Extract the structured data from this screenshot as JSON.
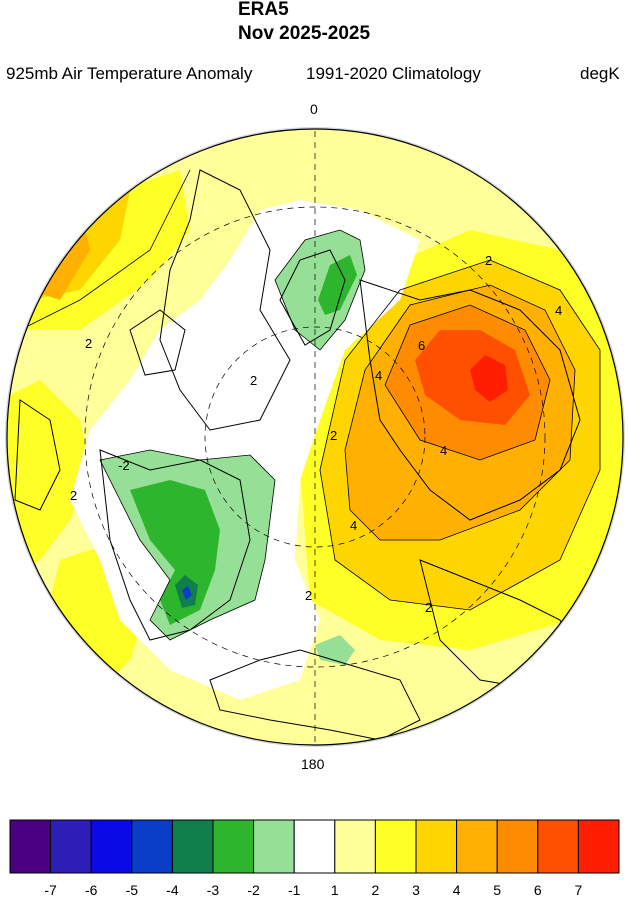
{
  "header": {
    "dataset": "ERA5",
    "period": "Nov 2025-2025",
    "variable": "925mb Air Temperature Anomaly",
    "climatology": "1991-2020 Climatology",
    "units": "degK"
  },
  "map": {
    "projection": "north-polar-stereographic",
    "longitude_labels": {
      "top": "0",
      "bottom": "180"
    },
    "contour_labels": [
      "2",
      "2",
      "2",
      "2",
      "2",
      "2",
      "4",
      "4",
      "4",
      "6",
      "4",
      "2",
      "-2"
    ],
    "features": [
      "coastlines",
      "latitude-circles",
      "meridian-0-180"
    ]
  },
  "colorbar": {
    "colors": [
      "#4b0082",
      "#2e1eb8",
      "#0a0ae6",
      "#0a3ec8",
      "#117f4c",
      "#2db62d",
      "#96df96",
      "#ffffff",
      "#ffff99",
      "#ffff28",
      "#ffd500",
      "#ffb000",
      "#ff8c00",
      "#ff5000",
      "#ff1e00"
    ],
    "labels": [
      "-7",
      "-6",
      "-5",
      "-4",
      "-3",
      "-2",
      "-1",
      "1",
      "2",
      "3",
      "4",
      "5",
      "6",
      "7"
    ]
  },
  "colors": {
    "background": "#ffffff",
    "land_outline": "#000000",
    "disk_edge": "#d6d6d6"
  }
}
